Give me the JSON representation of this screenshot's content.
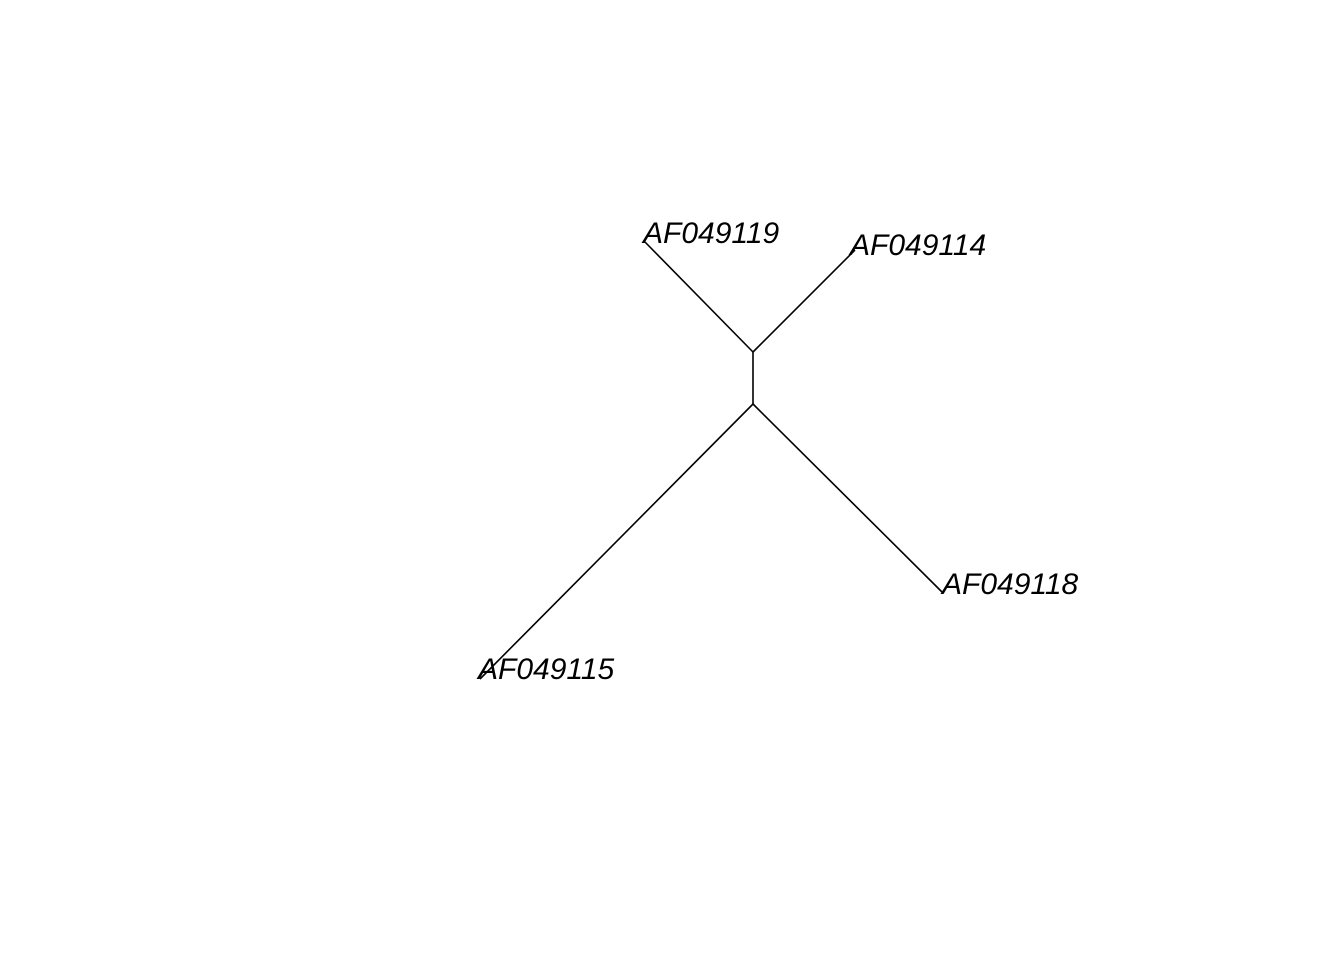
{
  "tree": {
    "type": "unrooted-phylogram",
    "tips": [
      {
        "id": "t1",
        "label": "AF049119"
      },
      {
        "id": "t2",
        "label": "AF049114"
      },
      {
        "id": "t3",
        "label": "AF049118"
      },
      {
        "id": "t4",
        "label": "AF049115"
      }
    ],
    "internal_edge": {
      "from": "n1",
      "to": "n2"
    }
  }
}
